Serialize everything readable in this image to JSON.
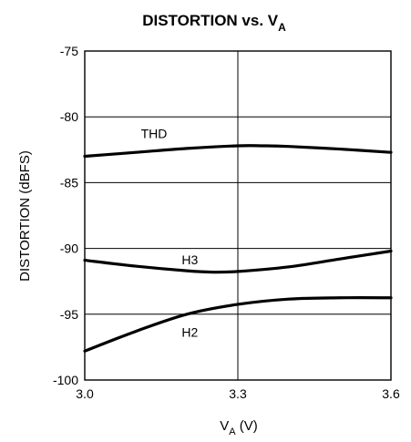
{
  "chart_data": {
    "type": "line",
    "title_main": "DISTORTION vs. V",
    "title_sub": "A",
    "ylabel": "DISTORTION (dBFS)",
    "xlabel_main": "V",
    "xlabel_sub": "A",
    "xlabel_unit": " (V)",
    "xlim": [
      3.0,
      3.6
    ],
    "ylim": [
      -100,
      -75
    ],
    "x_ticks": [
      3.0,
      3.3,
      3.6
    ],
    "x_tick_labels": [
      "3.0",
      "3.3",
      "3.6"
    ],
    "y_ticks": [
      -75,
      -80,
      -85,
      -90,
      -95,
      -100
    ],
    "y_tick_labels": [
      "-75",
      "-80",
      "-85",
      "-90",
      "-95",
      "-100"
    ],
    "grid": true,
    "series": [
      {
        "name": "THD",
        "x": [
          3.0,
          3.1,
          3.2,
          3.3,
          3.35,
          3.4,
          3.5,
          3.6
        ],
        "y": [
          -83.0,
          -82.7,
          -82.4,
          -82.2,
          -82.2,
          -82.25,
          -82.45,
          -82.7
        ],
        "label_at": [
          3.11,
          -81.6
        ]
      },
      {
        "name": "H3",
        "x": [
          3.0,
          3.1,
          3.2,
          3.25,
          3.3,
          3.4,
          3.5,
          3.6
        ],
        "y": [
          -90.9,
          -91.35,
          -91.7,
          -91.8,
          -91.75,
          -91.4,
          -90.8,
          -90.2
        ],
        "label_at": [
          3.19,
          -91.2
        ]
      },
      {
        "name": "H2",
        "x": [
          3.0,
          3.1,
          3.2,
          3.3,
          3.4,
          3.5,
          3.6
        ],
        "y": [
          -97.8,
          -96.3,
          -95.0,
          -94.25,
          -93.85,
          -93.75,
          -93.75
        ],
        "label_at": [
          3.19,
          -96.7
        ]
      }
    ]
  }
}
